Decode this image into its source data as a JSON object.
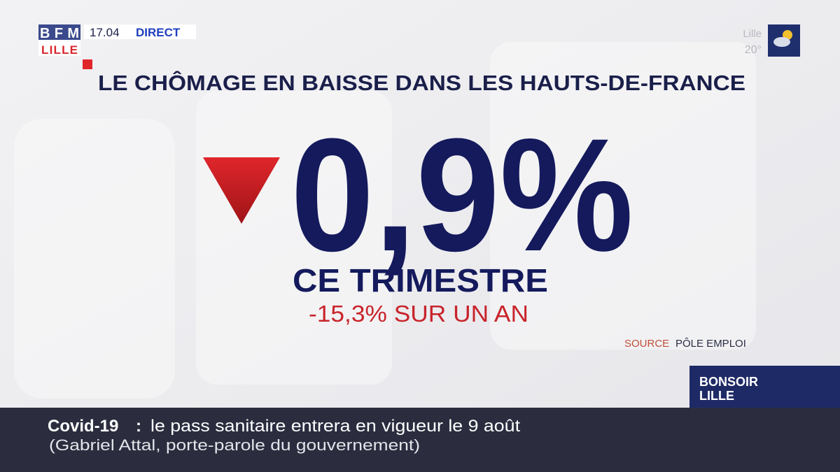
{
  "header": {
    "logo_top": "BFM",
    "logo_bottom": "LILLE",
    "time": "17.04",
    "live": "DIRECT"
  },
  "weather": {
    "city": "Lille",
    "temperature": "20°"
  },
  "graphic": {
    "title": "LE CHÔMAGE EN BAISSE DANS LES HAUTS-DE-FRANCE",
    "figure": "0,9%",
    "period": "CE TRIMESTRE",
    "yearly": "-15,3% SUR UN AN",
    "source_label": "SOURCE",
    "source": "PÔLE EMPLOI"
  },
  "program": {
    "line1": "BONSOIR",
    "line2": "LILLE"
  },
  "ticker": {
    "topic": "Covid-19",
    "separator": ":",
    "headline": "le pass sanitaire entrera en vigueur le 9 août",
    "attribution": "(Gabriel Attal, porte-parole du gouvernement)"
  }
}
